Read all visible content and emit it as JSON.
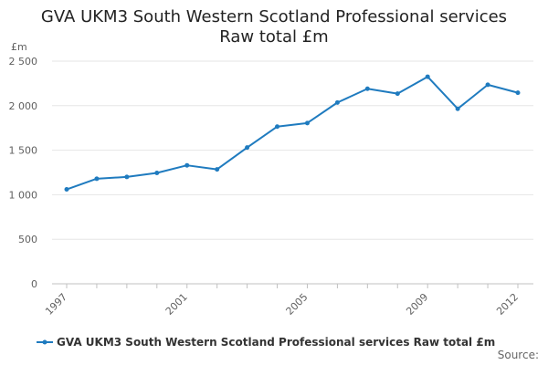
{
  "chart_data": {
    "type": "line",
    "title_line1": "GVA UKM3 South Western Scotland Professional services",
    "title_line2": "Raw total £m",
    "unit_label": "£m",
    "x": [
      "1997",
      "1998",
      "1999",
      "2000",
      "2001",
      "2002",
      "2003",
      "2004",
      "2005",
      "2006",
      "2007",
      "2008",
      "2009",
      "2010",
      "2011",
      "2012"
    ],
    "x_tick_labels": [
      "1997",
      "2001",
      "2005",
      "2009",
      "2012"
    ],
    "y_tick_labels": [
      "0",
      "500",
      "1 000",
      "1 500",
      "2 000",
      "2 500"
    ],
    "y_ticks": [
      0,
      500,
      1000,
      1500,
      2000,
      2500
    ],
    "ylim": [
      0,
      2500
    ],
    "series": [
      {
        "name": "GVA UKM3 South Western Scotland Professional services Raw total £m",
        "color": "#1f7bbf",
        "values": [
          1060,
          1180,
          1200,
          1245,
          1330,
          1285,
          1530,
          1765,
          1805,
          2035,
          2190,
          2135,
          2325,
          1965,
          2235,
          2145
        ]
      }
    ],
    "grid": true,
    "legend_position": "bottom-left"
  },
  "footer": {
    "source_label": "Source:"
  }
}
